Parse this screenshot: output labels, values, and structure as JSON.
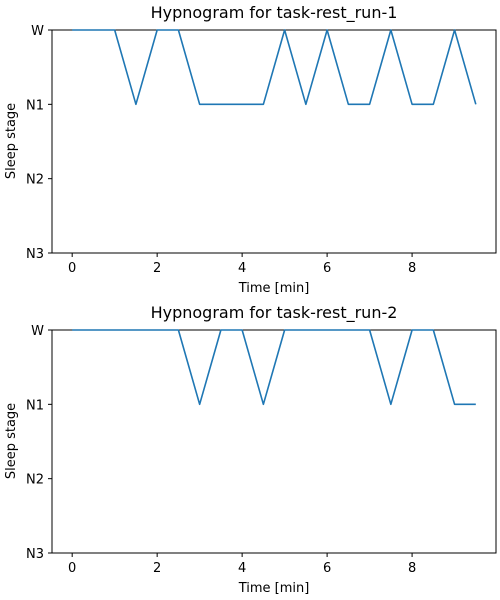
{
  "chart_data": [
    {
      "type": "line",
      "title": "Hypnogram for task-rest_run-1",
      "xlabel": "Time [min]",
      "ylabel": "Sleep stage",
      "xlim": [
        -0.475,
        9.975
      ],
      "xticks": [
        0,
        2,
        4,
        6,
        8
      ],
      "yticks": [
        "W",
        "N1",
        "N2",
        "N3"
      ],
      "x": [
        0,
        0.5,
        1,
        1.5,
        2,
        2.5,
        3,
        3.5,
        4,
        4.5,
        5,
        5.5,
        6,
        6.5,
        7,
        7.5,
        8,
        8.5,
        9,
        9.5
      ],
      "series": [
        {
          "values": [
            "W",
            "W",
            "W",
            "N1",
            "W",
            "W",
            "N1",
            "N1",
            "N1",
            "N1",
            "W",
            "N1",
            "W",
            "N1",
            "N1",
            "W",
            "N1",
            "N1",
            "W",
            "N1"
          ]
        }
      ],
      "grid": false
    },
    {
      "type": "line",
      "title": "Hypnogram for task-rest_run-2",
      "xlabel": "Time [min]",
      "ylabel": "Sleep stage",
      "xlim": [
        -0.475,
        9.975
      ],
      "xticks": [
        0,
        2,
        4,
        6,
        8
      ],
      "yticks": [
        "W",
        "N1",
        "N2",
        "N3"
      ],
      "x": [
        0,
        0.5,
        1,
        1.5,
        2,
        2.5,
        3,
        3.5,
        4,
        4.5,
        5,
        5.5,
        6,
        6.5,
        7,
        7.5,
        8,
        8.5,
        9,
        9.5
      ],
      "series": [
        {
          "values": [
            "W",
            "W",
            "W",
            "W",
            "W",
            "W",
            "N1",
            "W",
            "W",
            "N1",
            "W",
            "W",
            "W",
            "W",
            "W",
            "N1",
            "W",
            "W",
            "N1",
            "N1"
          ]
        }
      ],
      "grid": false
    }
  ],
  "colors": {
    "series": "#1f77b4",
    "axis": "#000000",
    "background": "#ffffff"
  }
}
